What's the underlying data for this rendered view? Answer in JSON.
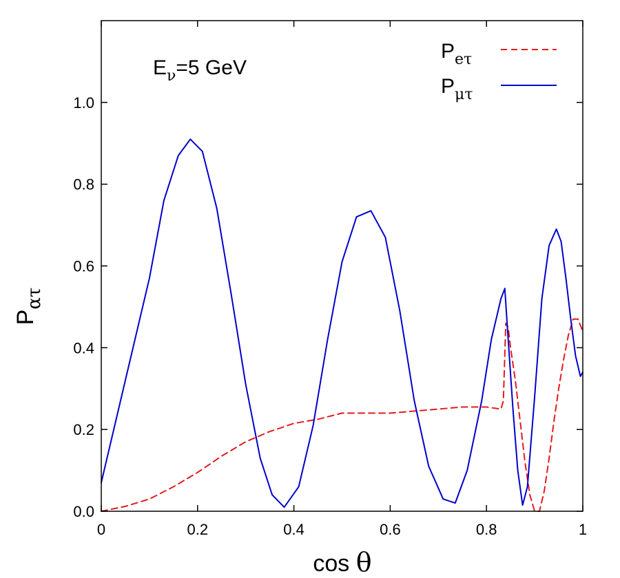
{
  "chart_data": {
    "type": "line",
    "annotation": {
      "main": "E",
      "sub": "ν",
      "rest": "=5 GeV"
    },
    "xlabel": {
      "main": "cos ",
      "symbol": "θ"
    },
    "ylabel": {
      "main": "P",
      "sub": "ατ"
    },
    "xlim": [
      0,
      1
    ],
    "ylim": [
      0,
      1.2
    ],
    "xticks": [
      0,
      0.2,
      0.4,
      0.6,
      0.8,
      1
    ],
    "xtick_labels": [
      "0",
      "0.2",
      "0.4",
      "0.6",
      "0.8",
      "1"
    ],
    "yticks": [
      0,
      0.2,
      0.4,
      0.6,
      0.8,
      1.0
    ],
    "ytick_labels": [
      "0.0",
      "0.2",
      "0.4",
      "0.6",
      "0.8",
      "1.0"
    ],
    "grid": false,
    "legend_position": "top-right",
    "series": [
      {
        "name": "P_eτ",
        "legend": {
          "main": "P",
          "sub": "eτ"
        },
        "color": "#e41a1c",
        "dash": true,
        "x": [
          0,
          0.05,
          0.1,
          0.15,
          0.2,
          0.25,
          0.3,
          0.35,
          0.4,
          0.45,
          0.5,
          0.55,
          0.6,
          0.65,
          0.7,
          0.75,
          0.8,
          0.83,
          0.835,
          0.84,
          0.845,
          0.85,
          0.86,
          0.87,
          0.88,
          0.89,
          0.9,
          0.91,
          0.92,
          0.93,
          0.94,
          0.95,
          0.96,
          0.97,
          0.98,
          0.99,
          1.0
        ],
        "y": [
          0.0,
          0.012,
          0.03,
          0.06,
          0.095,
          0.135,
          0.17,
          0.195,
          0.215,
          0.225,
          0.24,
          0.24,
          0.24,
          0.245,
          0.25,
          0.255,
          0.255,
          0.25,
          0.27,
          0.46,
          0.45,
          0.4,
          0.32,
          0.22,
          0.12,
          0.04,
          0.0,
          0.0,
          0.05,
          0.13,
          0.22,
          0.3,
          0.37,
          0.43,
          0.47,
          0.47,
          0.44
        ]
      },
      {
        "name": "P_μτ",
        "legend": {
          "main": "P",
          "sub": "μτ"
        },
        "color": "#0000cc",
        "dash": false,
        "x": [
          0,
          0.05,
          0.1,
          0.13,
          0.16,
          0.185,
          0.21,
          0.24,
          0.27,
          0.3,
          0.33,
          0.355,
          0.38,
          0.41,
          0.44,
          0.47,
          0.5,
          0.53,
          0.56,
          0.59,
          0.62,
          0.65,
          0.68,
          0.71,
          0.735,
          0.76,
          0.79,
          0.81,
          0.83,
          0.838,
          0.845,
          0.855,
          0.865,
          0.875,
          0.885,
          0.9,
          0.915,
          0.93,
          0.945,
          0.955,
          0.965,
          0.975,
          0.985,
          0.995,
          1.0
        ],
        "y": [
          0.07,
          0.32,
          0.57,
          0.76,
          0.87,
          0.91,
          0.88,
          0.74,
          0.53,
          0.31,
          0.13,
          0.04,
          0.01,
          0.06,
          0.21,
          0.42,
          0.61,
          0.72,
          0.735,
          0.67,
          0.49,
          0.27,
          0.11,
          0.03,
          0.02,
          0.1,
          0.27,
          0.42,
          0.52,
          0.545,
          0.42,
          0.25,
          0.1,
          0.015,
          0.06,
          0.28,
          0.52,
          0.65,
          0.69,
          0.66,
          0.57,
          0.47,
          0.38,
          0.33,
          0.34
        ]
      }
    ]
  }
}
